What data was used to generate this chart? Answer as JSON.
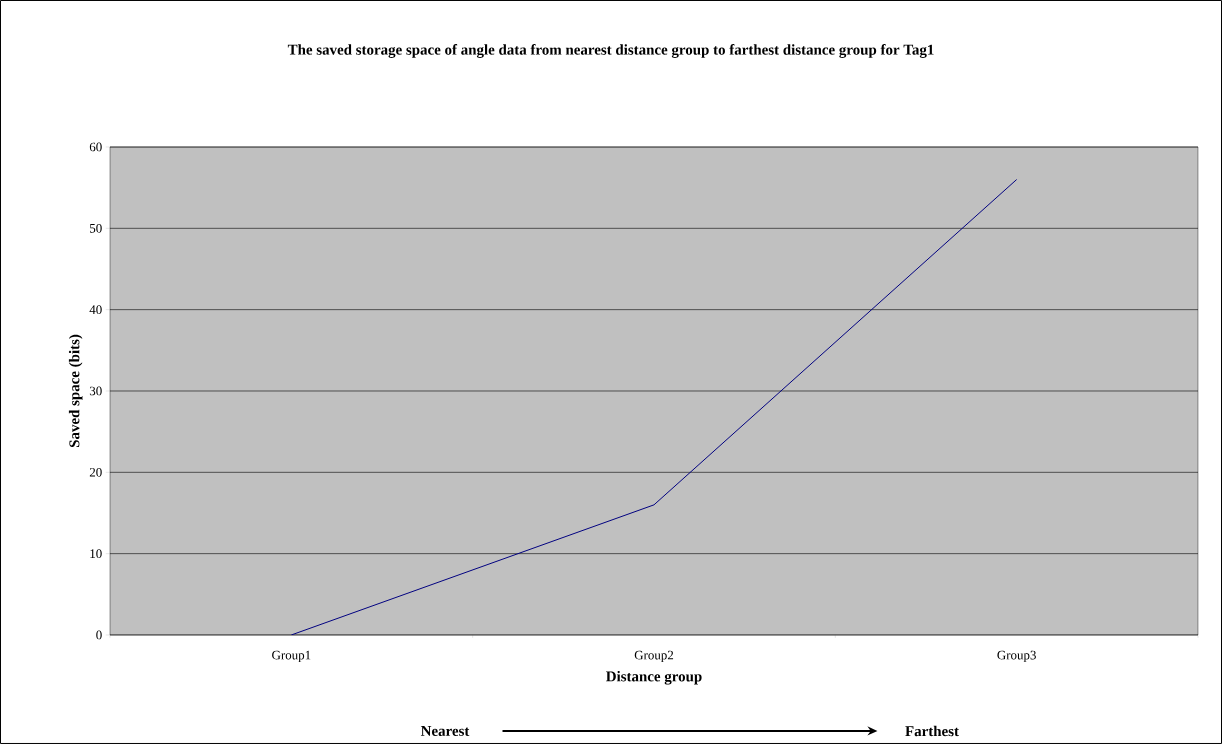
{
  "chart_data": {
    "type": "line",
    "title": "The saved storage space of angle data from nearest distance group to farthest distance group for Tag1",
    "xlabel": "Distance group",
    "ylabel": "Saved space (bits)",
    "categories": [
      "Group1",
      "Group2",
      "Group3"
    ],
    "values": [
      0,
      16,
      56
    ],
    "color": "#000080",
    "ylim": [
      0,
      60
    ],
    "yticks": [
      0,
      10,
      20,
      30,
      40,
      50,
      60
    ],
    "grid": "y",
    "annotations": [
      "Nearest",
      "Farthest"
    ]
  }
}
